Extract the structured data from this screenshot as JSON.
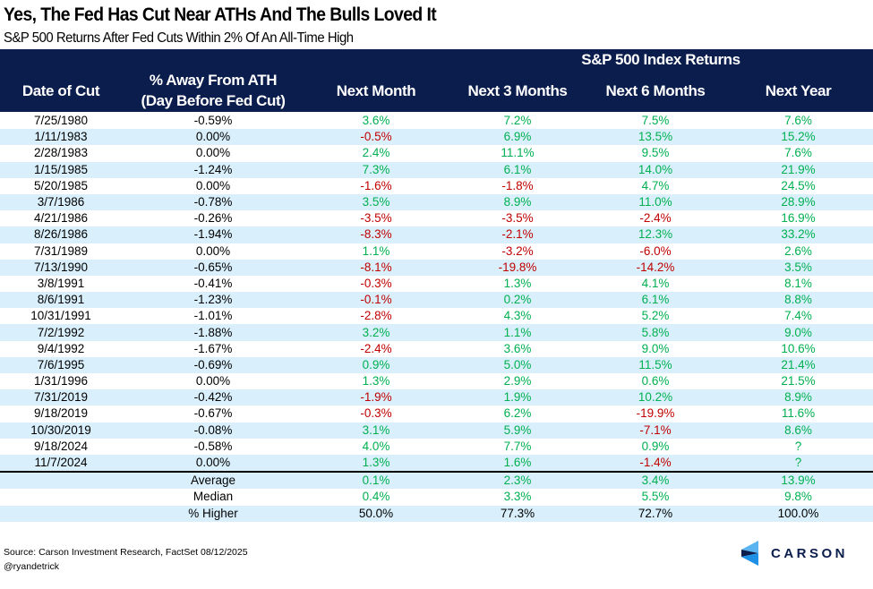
{
  "title": "Yes, The Fed Has Cut Near ATHs And The Bulls Loved It",
  "subtitle": "S&P 500 Returns After Fed Cuts Within 2% Of An All-Time High",
  "colors": {
    "header_bg": "#0b1d4c",
    "stripe": "#d9f0fc",
    "positive": "#00b050",
    "negative": "#c00000"
  },
  "chart_data": {
    "type": "table",
    "group_header": "S&P 500 Index Returns",
    "columns": [
      "Date of Cut",
      "% Away From ATH",
      "(Day Before Fed Cut)",
      "Next Month",
      "Next 3 Months",
      "Next 6 Months",
      "Next Year"
    ],
    "rows": [
      [
        "7/25/1980",
        "-0.59%",
        "3.6%",
        "7.2%",
        "7.5%",
        "7.6%"
      ],
      [
        "1/11/1983",
        "0.00%",
        "-0.5%",
        "6.9%",
        "13.5%",
        "15.2%"
      ],
      [
        "2/28/1983",
        "0.00%",
        "2.4%",
        "11.1%",
        "9.5%",
        "7.6%"
      ],
      [
        "1/15/1985",
        "-1.24%",
        "7.3%",
        "6.1%",
        "14.0%",
        "21.9%"
      ],
      [
        "5/20/1985",
        "0.00%",
        "-1.6%",
        "-1.8%",
        "4.7%",
        "24.5%"
      ],
      [
        "3/7/1986",
        "-0.78%",
        "3.5%",
        "8.9%",
        "11.0%",
        "28.9%"
      ],
      [
        "4/21/1986",
        "-0.26%",
        "-3.5%",
        "-3.5%",
        "-2.4%",
        "16.9%"
      ],
      [
        "8/26/1986",
        "-1.94%",
        "-8.3%",
        "-2.1%",
        "12.3%",
        "33.2%"
      ],
      [
        "7/31/1989",
        "0.00%",
        "1.1%",
        "-3.2%",
        "-6.0%",
        "2.6%"
      ],
      [
        "7/13/1990",
        "-0.65%",
        "-8.1%",
        "-19.8%",
        "-14.2%",
        "3.5%"
      ],
      [
        "3/8/1991",
        "-0.41%",
        "-0.3%",
        "1.3%",
        "4.1%",
        "8.1%"
      ],
      [
        "8/6/1991",
        "-1.23%",
        "-0.1%",
        "0.2%",
        "6.1%",
        "8.8%"
      ],
      [
        "10/31/1991",
        "-1.01%",
        "-2.8%",
        "4.3%",
        "5.2%",
        "7.4%"
      ],
      [
        "7/2/1992",
        "-1.88%",
        "3.2%",
        "1.1%",
        "5.8%",
        "9.0%"
      ],
      [
        "9/4/1992",
        "-1.67%",
        "-2.4%",
        "3.6%",
        "9.0%",
        "10.6%"
      ],
      [
        "7/6/1995",
        "-0.69%",
        "0.9%",
        "5.0%",
        "11.5%",
        "21.4%"
      ],
      [
        "1/31/1996",
        "0.00%",
        "1.3%",
        "2.9%",
        "0.6%",
        "21.5%"
      ],
      [
        "7/31/2019",
        "-0.42%",
        "-1.9%",
        "1.9%",
        "10.2%",
        "8.9%"
      ],
      [
        "9/18/2019",
        "-0.67%",
        "-0.3%",
        "6.2%",
        "-19.9%",
        "11.6%"
      ],
      [
        "10/30/2019",
        "-0.08%",
        "3.1%",
        "5.9%",
        "-7.1%",
        "8.6%"
      ],
      [
        "9/18/2024",
        "-0.58%",
        "4.0%",
        "7.7%",
        "0.9%",
        "?"
      ],
      [
        "11/7/2024",
        "0.00%",
        "1.3%",
        "1.6%",
        "-1.4%",
        "?"
      ]
    ],
    "summary": [
      {
        "label": "Average",
        "values": [
          "0.1%",
          "2.3%",
          "3.4%",
          "13.9%"
        ]
      },
      {
        "label": "Median",
        "values": [
          "0.4%",
          "3.3%",
          "5.5%",
          "9.8%"
        ]
      },
      {
        "label": "% Higher",
        "values": [
          "50.0%",
          "77.3%",
          "72.7%",
          "100.0%"
        ]
      }
    ]
  },
  "footer": {
    "source": "Source: Carson Investment Research, FactSet 08/12/2025",
    "handle": "@ryandetrick"
  },
  "logo": {
    "text": "CARSON"
  }
}
